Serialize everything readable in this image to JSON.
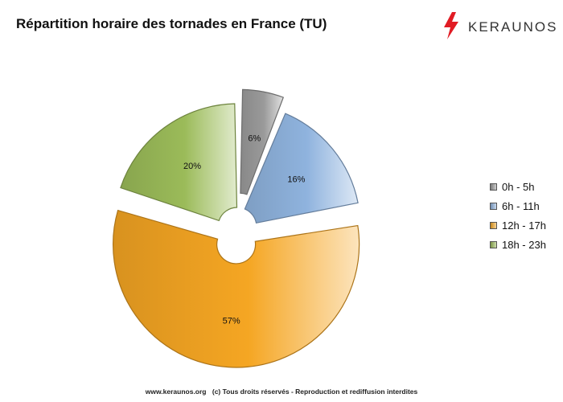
{
  "title": "Répartition horaire des tornades en France (TU)",
  "logo": {
    "text": "KERAUNOS",
    "icon": "lightning-bolt-icon",
    "color": "#e11c24"
  },
  "chart_data": {
    "type": "pie",
    "style": "doughnut-exploded",
    "categories": [
      "0h - 5h",
      "6h - 11h",
      "12h - 17h",
      "18h - 23h"
    ],
    "values": [
      6,
      16,
      57,
      20
    ],
    "labels": [
      "6%",
      "16%",
      "57%",
      "20%"
    ],
    "colors": [
      "#9a9a9a",
      "#8fb3de",
      "#f5a623",
      "#9bbb59"
    ],
    "legend_position": "right",
    "exploded_slices": [
      "0h - 5h",
      "12h - 17h"
    ]
  },
  "footer": {
    "site": "www.keraunos.org",
    "notice": "(c) Tous droits réservés - Reproduction et rediffusion interdites"
  }
}
